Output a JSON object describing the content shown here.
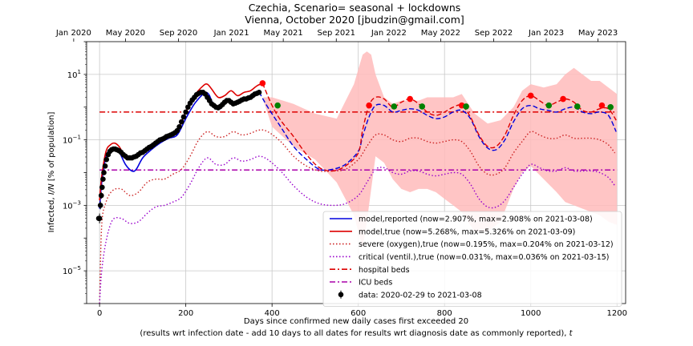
{
  "chart_data": {
    "type": "line",
    "title": "Czechia, Scenario= seasonal + lockdowns",
    "subtitle": "Vienna, October 2020 [jbudzin@gmail.com]",
    "xlabel": "Days since confirmed new daily cases first exceeded 20",
    "xlabel2": "(results wrt infection date - add 10 days to all dates for results wrt diagnosis date as commonly reported), ",
    "xlabel2_var": "t",
    "ylabel_pre": "Infected, ",
    "ylabel_var": "I/N",
    "ylabel_post": " [% of population]",
    "xlim": [
      -30,
      1220
    ],
    "ylim_log10": [
      -6,
      2
    ],
    "yscale": "log",
    "grid": true,
    "legend_position": "lower-right",
    "x_ticks": [
      0,
      200,
      400,
      600,
      800,
      1000,
      1200
    ],
    "x_tick_labels": [
      "0",
      "200",
      "400",
      "600",
      "800",
      "1000",
      "1200"
    ],
    "y_ticks_log10": [
      -5,
      -3,
      -1,
      1
    ],
    "y_tick_labels": [
      {
        "base": "10",
        "exp": "−5"
      },
      {
        "base": "10",
        "exp": "−3"
      },
      {
        "base": "10",
        "exp": "−1"
      },
      {
        "base": "10",
        "exp": "1"
      }
    ],
    "top_ticks": [
      {
        "day": -60,
        "label": "Jan 2020"
      },
      {
        "day": 60,
        "label": "May 2020"
      },
      {
        "day": 183,
        "label": "Sep 2020"
      },
      {
        "day": 306,
        "label": "Jan 2021"
      },
      {
        "day": 426,
        "label": "May 2021"
      },
      {
        "day": 549,
        "label": "Sep 2021"
      },
      {
        "day": 671,
        "label": "Jan 2022"
      },
      {
        "day": 791,
        "label": "May 2022"
      },
      {
        "day": 914,
        "label": "Sep 2022"
      },
      {
        "day": 1036,
        "label": "Jan 2023"
      },
      {
        "day": 1156,
        "label": "May 2023"
      }
    ],
    "colors": {
      "reported": "#0000dd",
      "true": "#dd0000",
      "severe": "#cc2222",
      "critical": "#9900cc",
      "hospital": "#dd0000",
      "icu": "#aa00aa",
      "band": "#ffbbbb",
      "data": "#000000",
      "marker_max": "#ff0000",
      "marker_min": "#008000"
    },
    "hospital_beds_log10": -0.15,
    "icu_beds_log10": -1.92,
    "band": {
      "x": [
        380,
        400,
        450,
        500,
        550,
        590,
        610,
        620,
        630,
        640,
        660,
        680,
        700,
        720,
        740,
        760,
        780,
        800,
        820,
        840,
        870,
        900,
        930,
        960,
        980,
        1000,
        1030,
        1060,
        1080,
        1100,
        1120,
        1140,
        1160,
        1180,
        1200
      ],
      "upper": [
        0.3,
        0.3,
        0.1,
        -0.2,
        -0.35,
        0.7,
        1.6,
        1.7,
        1.6,
        1.0,
        0.3,
        0.1,
        0.2,
        0.2,
        0.2,
        0.3,
        0.3,
        0.3,
        0.3,
        0.4,
        -0.2,
        -0.5,
        -0.4,
        0.0,
        0.5,
        0.7,
        0.6,
        0.7,
        1.0,
        1.2,
        1.0,
        0.8,
        0.8,
        0.6,
        0.4
      ],
      "lower": [
        0.2,
        -0.6,
        -1.2,
        -1.6,
        -2.3,
        -3.3,
        -4.3,
        -3.5,
        -2.5,
        -1.5,
        -1.7,
        -2.2,
        -2.5,
        -2.6,
        -2.5,
        -2.5,
        -2.6,
        -2.8,
        -3.0,
        -3.2,
        -3.8,
        -3.8,
        -3.5,
        -2.5,
        -2.0,
        -1.8,
        -2.2,
        -2.6,
        -2.9,
        -3.0,
        -3.1,
        -3.2,
        -3.3,
        -3.5,
        -3.6
      ]
    },
    "series": [
      {
        "name": "model,reported (now=2.907%, max=2.908% on 2021-03-08)",
        "style": "solid",
        "color": "#0000dd",
        "x": [
          0,
          5,
          15,
          25,
          35,
          45,
          60,
          75,
          85,
          100,
          120,
          140,
          160,
          180,
          200,
          220,
          240,
          248,
          255,
          265,
          280,
          295,
          310,
          325,
          340,
          355,
          370
        ],
        "y": [
          -3.1,
          -2.3,
          -1.5,
          -1.3,
          -1.25,
          -1.35,
          -1.75,
          -1.95,
          -1.9,
          -1.55,
          -1.3,
          -1.1,
          -0.95,
          -0.85,
          -0.35,
          0.1,
          0.4,
          0.45,
          0.35,
          0.05,
          -0.05,
          0.25,
          0.1,
          0.2,
          0.25,
          0.4,
          0.46
        ]
      },
      {
        "name": "model,true (now=5.268%, max=5.326% on 2021-03-09)",
        "style": "solid",
        "color": "#dd0000",
        "x": [
          0,
          5,
          15,
          25,
          35,
          45,
          60,
          75,
          85,
          100,
          120,
          140,
          160,
          180,
          200,
          220,
          240,
          250,
          260,
          275,
          290,
          305,
          320,
          335,
          350,
          365,
          378
        ],
        "y": [
          -2.85,
          -2.1,
          -1.35,
          -1.15,
          -1.1,
          -1.2,
          -1.5,
          -1.55,
          -1.5,
          -1.35,
          -1.15,
          -1.0,
          -0.85,
          -0.7,
          -0.15,
          0.35,
          0.65,
          0.7,
          0.55,
          0.3,
          0.35,
          0.5,
          0.35,
          0.45,
          0.5,
          0.65,
          0.73
        ]
      },
      {
        "name": "severe (oxygen),true (now=0.195%, max=0.204% on 2021-03-12)",
        "style": "dotted",
        "color": "#cc2222",
        "x": [
          0,
          5,
          15,
          30,
          50,
          70,
          90,
          110,
          130,
          150,
          170,
          190,
          210,
          230,
          250,
          270,
          290,
          310,
          330,
          350,
          370,
          390,
          420,
          450,
          480,
          510,
          540,
          570,
          600,
          620,
          640,
          660,
          680,
          700,
          720,
          740,
          760,
          780,
          800,
          820,
          840,
          860,
          880,
          900,
          920,
          940,
          960,
          980,
          1000,
          1020,
          1040,
          1060,
          1080,
          1100,
          1120,
          1140,
          1160,
          1180,
          1195
        ],
        "y": [
          -6,
          -3.6,
          -2.9,
          -2.55,
          -2.5,
          -2.7,
          -2.6,
          -2.3,
          -2.2,
          -2.2,
          -2.05,
          -1.9,
          -1.5,
          -1.0,
          -0.75,
          -0.9,
          -0.9,
          -0.75,
          -0.85,
          -0.8,
          -0.7,
          -0.75,
          -1.05,
          -1.5,
          -1.8,
          -1.95,
          -1.95,
          -1.9,
          -1.6,
          -1.2,
          -0.85,
          -0.85,
          -1.0,
          -1.05,
          -0.95,
          -0.95,
          -1.05,
          -1.1,
          -1.05,
          -1.0,
          -1.05,
          -1.35,
          -1.8,
          -2.05,
          -2.05,
          -1.85,
          -1.4,
          -1.05,
          -0.75,
          -0.85,
          -0.95,
          -0.95,
          -0.85,
          -0.95,
          -0.95,
          -0.95,
          -1.0,
          -1.15,
          -1.4
        ]
      },
      {
        "name": "critical (ventil.),true (now=0.031%, max=0.036% on 2021-03-15)",
        "style": "dotted",
        "color": "#9900cc",
        "x": [
          0,
          5,
          15,
          30,
          50,
          70,
          90,
          110,
          130,
          150,
          170,
          190,
          210,
          230,
          250,
          270,
          290,
          310,
          330,
          350,
          370,
          390,
          420,
          450,
          480,
          510,
          540,
          570,
          600,
          620,
          640,
          660,
          680,
          700,
          720,
          740,
          760,
          780,
          800,
          820,
          840,
          860,
          880,
          900,
          920,
          940,
          960,
          980,
          1000,
          1020,
          1040,
          1060,
          1080,
          1100,
          1120,
          1140,
          1160,
          1180,
          1195
        ],
        "y": [
          -6,
          -5.0,
          -4.1,
          -3.45,
          -3.4,
          -3.55,
          -3.5,
          -3.25,
          -3.05,
          -3.0,
          -2.9,
          -2.75,
          -2.35,
          -1.85,
          -1.55,
          -1.75,
          -1.75,
          -1.55,
          -1.65,
          -1.6,
          -1.5,
          -1.6,
          -1.95,
          -2.4,
          -2.75,
          -2.95,
          -3.0,
          -2.95,
          -2.7,
          -2.3,
          -1.9,
          -1.85,
          -2.0,
          -2.05,
          -1.95,
          -1.95,
          -2.05,
          -2.1,
          -2.05,
          -2.0,
          -2.05,
          -2.35,
          -2.8,
          -3.05,
          -3.05,
          -2.85,
          -2.45,
          -2.05,
          -1.75,
          -1.85,
          -1.95,
          -1.95,
          -1.85,
          -1.95,
          -1.95,
          -1.95,
          -2.0,
          -2.15,
          -2.4
        ]
      },
      {
        "name": "model,reported forecast",
        "style": "dashed",
        "color": "#0000dd",
        "x": [
          370,
          390,
          420,
          450,
          480,
          510,
          540,
          570,
          600,
          610,
          625,
          640,
          660,
          680,
          700,
          720,
          740,
          760,
          780,
          800,
          820,
          840,
          860,
          880,
          900,
          920,
          940,
          960,
          980,
          1000,
          1020,
          1040,
          1060,
          1080,
          1100,
          1120,
          1140,
          1160,
          1180,
          1198
        ],
        "y": [
          0.46,
          0.0,
          -0.6,
          -1.2,
          -1.6,
          -1.9,
          -1.9,
          -1.75,
          -1.35,
          -0.9,
          -0.3,
          0.05,
          0.05,
          -0.15,
          -0.1,
          -0.05,
          -0.1,
          -0.25,
          -0.35,
          -0.3,
          -0.15,
          -0.1,
          -0.35,
          -0.9,
          -1.25,
          -1.3,
          -1.0,
          -0.45,
          -0.05,
          0.05,
          -0.05,
          -0.1,
          -0.15,
          -0.05,
          0.0,
          -0.15,
          -0.2,
          -0.15,
          -0.25,
          -0.75
        ]
      },
      {
        "name": "model,true forecast",
        "style": "dashed",
        "color": "#dd0000",
        "x": [
          378,
          400,
          420,
          450,
          480,
          510,
          540,
          570,
          600,
          610,
          625,
          640,
          660,
          680,
          700,
          720,
          740,
          760,
          780,
          800,
          820,
          840,
          860,
          880,
          900,
          920,
          940,
          960,
          980,
          1000,
          1020,
          1040,
          1060,
          1080,
          1100,
          1120,
          1140,
          1160,
          1180,
          1198
        ],
        "y": [
          0.73,
          0.05,
          -0.4,
          -0.9,
          -1.45,
          -1.85,
          -1.95,
          -1.8,
          -1.4,
          -0.7,
          0.05,
          0.3,
          0.25,
          0.0,
          0.15,
          0.25,
          0.1,
          -0.15,
          -0.25,
          -0.15,
          0.0,
          0.05,
          -0.3,
          -0.85,
          -1.2,
          -1.2,
          -0.85,
          -0.25,
          0.2,
          0.35,
          0.2,
          0.05,
          0.15,
          0.25,
          0.15,
          -0.1,
          -0.15,
          -0.05,
          -0.05,
          -0.4
        ]
      },
      {
        "name": "data: 2020-02-29 to 2021-03-08",
        "style": "points",
        "color": "#000000",
        "x": [
          0,
          2,
          4,
          6,
          8,
          10,
          13,
          16,
          20,
          24,
          28,
          32,
          36,
          40,
          45,
          50,
          55,
          60,
          65,
          70,
          75,
          80,
          85,
          90,
          95,
          100,
          105,
          110,
          115,
          120,
          125,
          130,
          135,
          140,
          145,
          150,
          155,
          160,
          165,
          170,
          175,
          180,
          185,
          190,
          195,
          200,
          205,
          210,
          215,
          220,
          225,
          230,
          235,
          240,
          245,
          250,
          255,
          260,
          265,
          270,
          275,
          280,
          285,
          290,
          295,
          300,
          305,
          310,
          315,
          320,
          325,
          330,
          335,
          340,
          345,
          350,
          355,
          360,
          365,
          370
        ],
        "y": [
          -3.4,
          -3.0,
          -2.7,
          -2.45,
          -2.2,
          -2.0,
          -1.8,
          -1.6,
          -1.45,
          -1.35,
          -1.3,
          -1.28,
          -1.28,
          -1.3,
          -1.33,
          -1.38,
          -1.45,
          -1.5,
          -1.55,
          -1.55,
          -1.55,
          -1.52,
          -1.5,
          -1.45,
          -1.4,
          -1.38,
          -1.33,
          -1.28,
          -1.23,
          -1.2,
          -1.15,
          -1.1,
          -1.05,
          -1.0,
          -0.98,
          -0.95,
          -0.9,
          -0.88,
          -0.85,
          -0.82,
          -0.78,
          -0.72,
          -0.6,
          -0.45,
          -0.3,
          -0.15,
          0.0,
          0.12,
          0.22,
          0.3,
          0.38,
          0.42,
          0.45,
          0.45,
          0.4,
          0.3,
          0.2,
          0.1,
          0.05,
          0.0,
          -0.02,
          0.02,
          0.08,
          0.15,
          0.2,
          0.2,
          0.15,
          0.1,
          0.12,
          0.15,
          0.18,
          0.22,
          0.25,
          0.25,
          0.28,
          0.3,
          0.35,
          0.4,
          0.42,
          0.45
        ],
        "err": [
          0.15,
          0.12,
          0.1,
          0.08,
          0.07,
          0.06,
          0.05,
          0.05,
          0.04,
          0.04,
          0.04,
          0.03,
          0.03,
          0.03,
          0.03,
          0.03,
          0.03,
          0.03,
          0.03,
          0.03,
          0.03,
          0.03,
          0.03,
          0.03,
          0.03,
          0.03,
          0.03,
          0.03,
          0.03,
          0.03,
          0.03,
          0.03,
          0.03,
          0.03,
          0.03,
          0.03,
          0.03,
          0.03,
          0.03,
          0.03,
          0.03,
          0.03,
          0.03,
          0.03,
          0.03,
          0.03,
          0.03,
          0.03,
          0.03,
          0.03,
          0.03,
          0.03,
          0.03,
          0.03,
          0.03,
          0.03,
          0.03,
          0.03,
          0.03,
          0.03,
          0.03,
          0.03,
          0.03,
          0.03,
          0.03,
          0.03,
          0.03,
          0.03,
          0.03,
          0.03,
          0.03,
          0.03,
          0.03,
          0.03,
          0.03,
          0.03,
          0.03,
          0.03,
          0.03,
          0.03
        ]
      }
    ],
    "outlier_point": {
      "x": -2,
      "y": -3.4
    },
    "markers_max": [
      {
        "x": 378,
        "y": 0.73
      },
      {
        "x": 625,
        "y": 0.05
      },
      {
        "x": 720,
        "y": 0.25
      },
      {
        "x": 840,
        "y": 0.05
      },
      {
        "x": 1000,
        "y": 0.35
      },
      {
        "x": 1075,
        "y": 0.25
      },
      {
        "x": 1165,
        "y": 0.05
      }
    ],
    "markers_min": [
      {
        "x": 413,
        "y": 0.05
      },
      {
        "x": 683,
        "y": 0.02
      },
      {
        "x": 748,
        "y": 0.02
      },
      {
        "x": 850,
        "y": 0.02
      },
      {
        "x": 1042,
        "y": 0.05
      },
      {
        "x": 1108,
        "y": 0.02
      },
      {
        "x": 1185,
        "y": 0.0
      }
    ],
    "legend": [
      {
        "key": "reported",
        "style": "solid",
        "label": "model,reported (now=2.907%, max=2.908% on 2021-03-08)"
      },
      {
        "key": "true",
        "style": "solid",
        "label": "model,true (now=5.268%, max=5.326% on 2021-03-09)"
      },
      {
        "key": "severe",
        "style": "dotted",
        "label": "severe (oxygen),true (now=0.195%, max=0.204% on 2021-03-12)"
      },
      {
        "key": "critical",
        "style": "dotted",
        "label": "critical (ventil.),true (now=0.031%, max=0.036% on 2021-03-15)"
      },
      {
        "key": "hospital",
        "style": "dashdot",
        "label": "hospital beds"
      },
      {
        "key": "icu",
        "style": "dashdot",
        "label": "ICU beds"
      },
      {
        "key": "data",
        "style": "errorbar",
        "label": "data: 2020-02-29 to 2021-03-08"
      }
    ]
  }
}
